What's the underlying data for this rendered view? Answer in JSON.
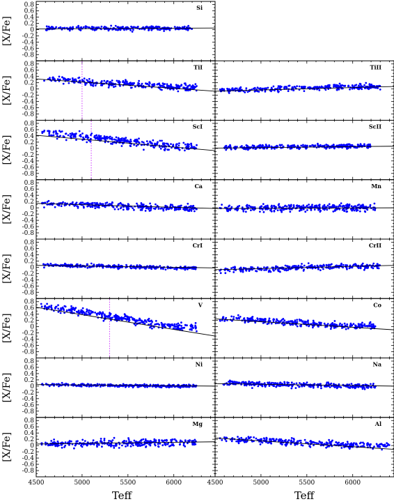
{
  "chart_data": {
    "type": "scatter",
    "layout": "8 rows x 2 columns of panels; top-right empty",
    "xlabel": "Teff",
    "ylabel": "[X/Fe]",
    "xlim": [
      4500,
      6450
    ],
    "ylim": [
      -1.0,
      0.9
    ],
    "xticks_left": [
      "4500",
      "5000",
      "5500",
      "6000"
    ],
    "xticks_right": [
      "4500",
      "5000",
      "5500",
      "6000"
    ],
    "yticks": [
      "0.8",
      "0.6",
      "0.4",
      "0.2",
      "0",
      "-0.2",
      "-0.4",
      "-0.6",
      "-0.8"
    ],
    "point_color": "#0000ff",
    "fit_color": "#000000",
    "marker_color": "#cc33ff",
    "panels": [
      {
        "label": "Si",
        "row": 0,
        "col": 0,
        "fit": [
          0.02,
          0.05
        ],
        "center": [
          0.04,
          0.04
        ],
        "scatter": 0.05,
        "pmin": 4600,
        "pmax": 6200,
        "n": 260
      },
      {
        "label": "TiI",
        "row": 1,
        "col": 0,
        "fit": [
          0.32,
          -0.07
        ],
        "center": [
          0.35,
          0.05
        ],
        "scatter": 0.08,
        "vline": 5000,
        "pmin": 4550,
        "pmax": 6250,
        "n": 300
      },
      {
        "label": "TiII",
        "row": 1,
        "col": 1,
        "fit": [
          -0.07,
          0.08
        ],
        "center": [
          -0.05,
          0.08
        ],
        "scatter": 0.06,
        "pmin": 4550,
        "pmax": 6300,
        "n": 300
      },
      {
        "label": "ScI",
        "row": 2,
        "col": 0,
        "fit": [
          0.42,
          -0.07
        ],
        "center": [
          0.55,
          0.05
        ],
        "scatter": 0.09,
        "vline": 5100,
        "pmin": 4550,
        "pmax": 6250,
        "n": 300
      },
      {
        "label": "ScII",
        "row": 2,
        "col": 1,
        "fit": [
          0.01,
          0.07
        ],
        "center": [
          0.02,
          0.08
        ],
        "scatter": 0.05,
        "pmin": 4600,
        "pmax": 6200,
        "n": 300
      },
      {
        "label": "Ca",
        "row": 3,
        "col": 0,
        "fit": [
          0.14,
          -0.02
        ],
        "center": [
          0.15,
          0.0
        ],
        "scatter": 0.07,
        "pmin": 4550,
        "pmax": 6250,
        "n": 300
      },
      {
        "label": "Mn",
        "row": 3,
        "col": 1,
        "fit": [
          -0.02,
          0.0
        ],
        "center": [
          0.0,
          0.0
        ],
        "scatter": 0.08,
        "pmin": 4550,
        "pmax": 6250,
        "n": 320
      },
      {
        "label": "CrI",
        "row": 4,
        "col": 0,
        "fit": [
          0.06,
          -0.02
        ],
        "center": [
          0.08,
          -0.02
        ],
        "scatter": 0.04,
        "pmin": 4550,
        "pmax": 6250,
        "n": 300
      },
      {
        "label": "CrII",
        "row": 4,
        "col": 1,
        "fit": [
          -0.08,
          0.06
        ],
        "center": [
          -0.1,
          0.04
        ],
        "scatter": 0.06,
        "pmin": 4550,
        "pmax": 6300,
        "n": 300
      },
      {
        "label": "V",
        "row": 5,
        "col": 0,
        "fit": [
          0.62,
          -0.3
        ],
        "center": [
          0.7,
          0.0
        ],
        "scatter": 0.09,
        "vline": 5300,
        "pmin": 4550,
        "pmax": 6250,
        "n": 320
      },
      {
        "label": "Co",
        "row": 5,
        "col": 1,
        "fit": [
          0.25,
          -0.1
        ],
        "center": [
          0.28,
          0.02
        ],
        "scatter": 0.07,
        "pmin": 4550,
        "pmax": 6250,
        "n": 300
      },
      {
        "label": "Ni",
        "row": 6,
        "col": 0,
        "fit": [
          0.05,
          0.0
        ],
        "center": [
          0.05,
          0.0
        ],
        "scatter": 0.03,
        "pmin": 4550,
        "pmax": 6250,
        "n": 300
      },
      {
        "label": "Na",
        "row": 6,
        "col": 1,
        "fit": [
          0.08,
          0.0
        ],
        "center": [
          0.1,
          0.0
        ],
        "scatter": 0.06,
        "pmin": 4550,
        "pmax": 6250,
        "n": 300
      },
      {
        "label": "Mg",
        "row": 7,
        "col": 0,
        "fit": [
          0.05,
          0.12
        ],
        "center": [
          0.04,
          0.1
        ],
        "scatter": 0.08,
        "pmin": 4550,
        "pmax": 6250,
        "n": 300
      },
      {
        "label": "Al",
        "row": 7,
        "col": 1,
        "fit": [
          0.24,
          -0.12
        ],
        "center": [
          0.25,
          0.0
        ],
        "scatter": 0.08,
        "pmin": 4550,
        "pmax": 6400,
        "n": 300
      }
    ]
  }
}
